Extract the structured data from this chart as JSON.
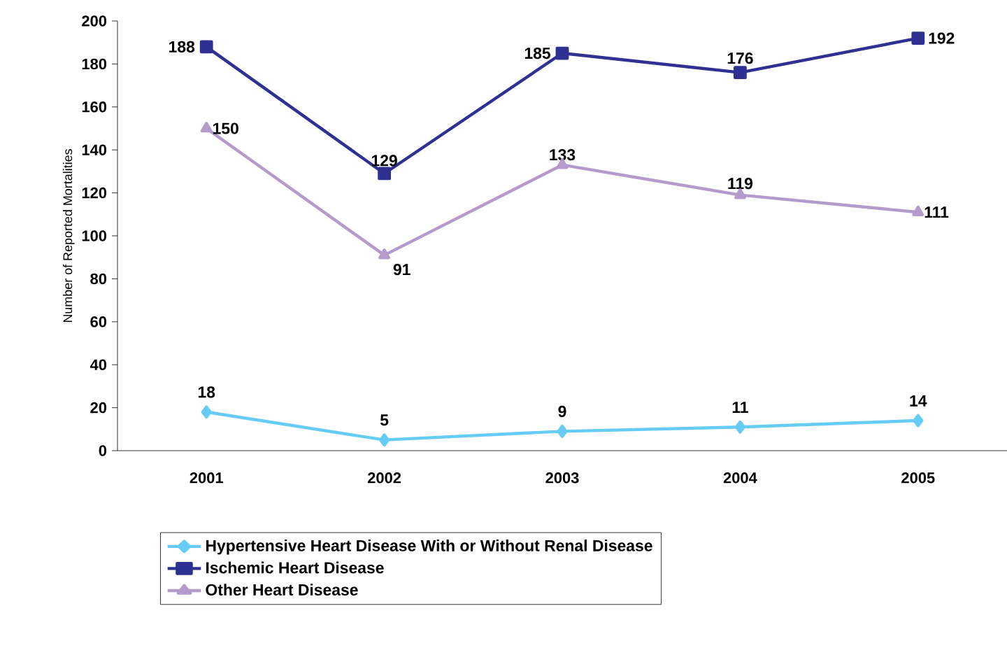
{
  "chart_data": {
    "type": "line",
    "ylabel": "Number of Reported Mortalities",
    "categories": [
      "2001",
      "2002",
      "2003",
      "2004",
      "2005"
    ],
    "series": [
      {
        "name": "Hypertensive Heart Disease With or Without Renal Disease",
        "color": "#66ccf5",
        "marker": "diamond",
        "values": [
          18,
          5,
          9,
          11,
          14
        ]
      },
      {
        "name": "Ischemic Heart Disease",
        "color": "#2e3192",
        "marker": "square",
        "values": [
          188,
          129,
          185,
          176,
          192
        ]
      },
      {
        "name": "Other Heart Disease",
        "color": "#b59bcc",
        "marker": "triangle",
        "values": [
          150,
          91,
          133,
          119,
          111
        ]
      }
    ],
    "ylim": [
      0,
      200
    ],
    "yticks": [
      0,
      20,
      40,
      60,
      80,
      100,
      120,
      140,
      160,
      180,
      200
    ],
    "data_labels": true,
    "legend": "bottom",
    "grid": false,
    "line_style": "solid"
  }
}
